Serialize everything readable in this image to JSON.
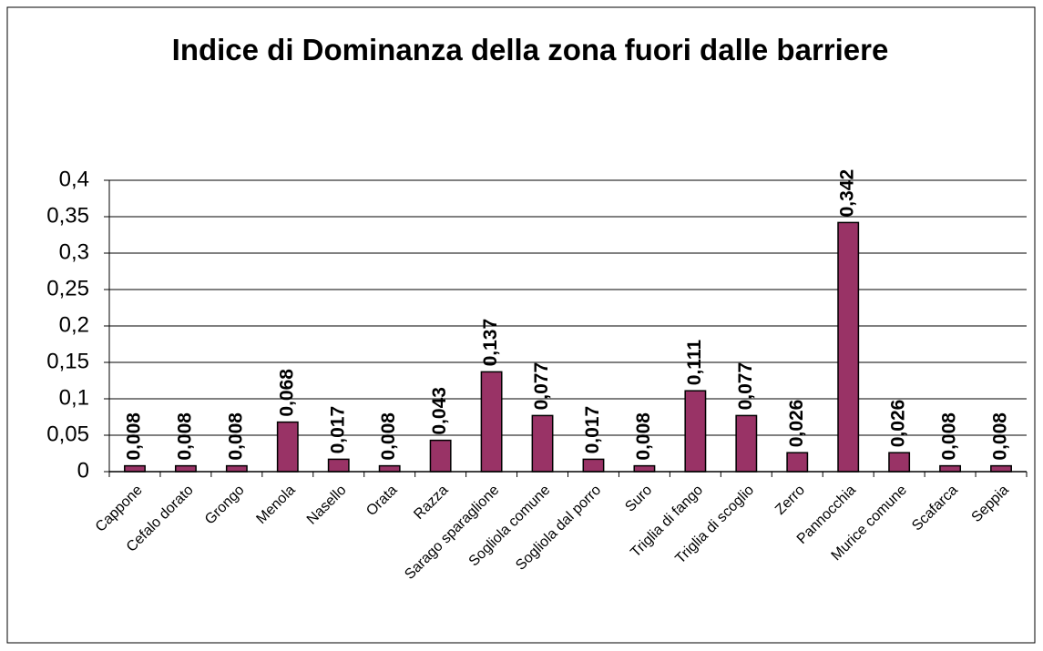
{
  "chart_data": {
    "type": "bar",
    "title": "Indice di Dominanza della zona fuori dalle barriere",
    "categories": [
      "Cappone",
      "Cefalo dorato",
      "Grongo",
      "Menola",
      "Nasello",
      "Orata",
      "Razza",
      "Sarago sparaglione",
      "Sogliola comune",
      "Sogliola dal porro",
      "Suro",
      "Triglia di fango",
      "Triglia di scoglio",
      "Zerro",
      "Pannocchia",
      "Murice comune",
      "Scafarca",
      "Seppia"
    ],
    "values": [
      0.008,
      0.008,
      0.008,
      0.068,
      0.017,
      0.008,
      0.043,
      0.137,
      0.077,
      0.017,
      0.008,
      0.111,
      0.077,
      0.026,
      0.342,
      0.026,
      0.008,
      0.008
    ],
    "value_labels": [
      "0,008",
      "0,008",
      "0,008",
      "0,068",
      "0,017",
      "0,008",
      "0,043",
      "0,137",
      "0,077",
      "0,017",
      "0,008",
      "0,111",
      "0,077",
      "0,026",
      "0,342",
      "0,026",
      "0,008",
      "0,008"
    ],
    "color": "#993366",
    "ylim": [
      0,
      0.4
    ],
    "yticks": [
      0,
      {
        "value": 0.05,
        "label": "0,05"
      },
      {
        "value": 0.1,
        "label": "0,1"
      },
      {
        "value": 0.15,
        "label": "0,15"
      },
      {
        "value": 0.2,
        "label": "0,2"
      },
      {
        "value": 0.25,
        "label": "0,25"
      },
      {
        "value": 0.3,
        "label": "0,3"
      },
      {
        "value": 0.35,
        "label": "0,35"
      },
      {
        "value": 0.4,
        "label": "0,4"
      }
    ],
    "grid": true
  }
}
